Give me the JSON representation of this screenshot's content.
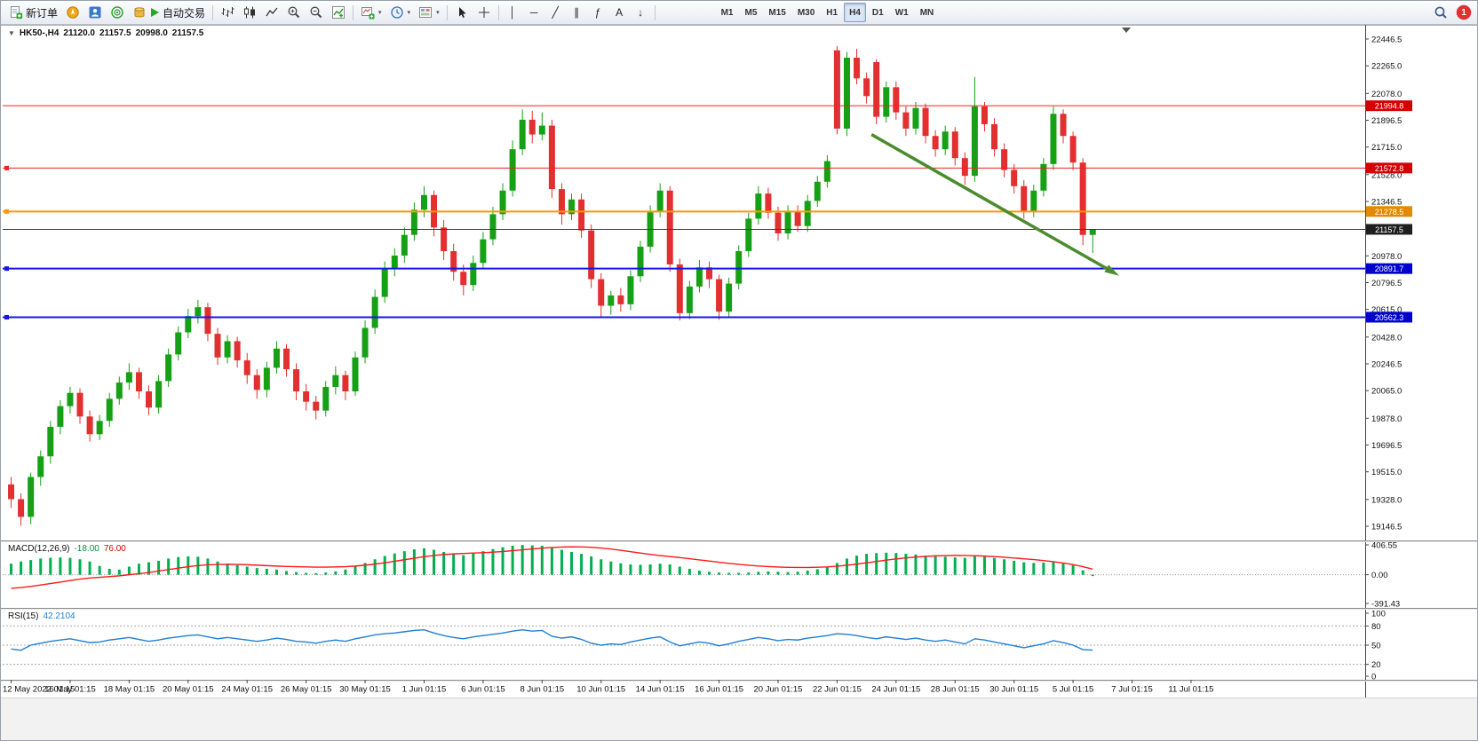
{
  "toolbar": {
    "new_order_label": "新订单",
    "auto_trading_label": "自动交易",
    "timeframes": [
      "M1",
      "M5",
      "M15",
      "M30",
      "H1",
      "H4",
      "D1",
      "W1",
      "MN"
    ],
    "active_timeframe": "H4",
    "notification_count": "1",
    "tools": [
      {
        "name": "vertical-line-tool",
        "glyph": "│"
      },
      {
        "name": "horizontal-line-tool",
        "glyph": "─"
      },
      {
        "name": "trendline-tool",
        "glyph": "╱"
      },
      {
        "name": "equidistant-channel-tool",
        "glyph": "∥"
      },
      {
        "name": "fibonacci-tool",
        "glyph": "ƒ"
      },
      {
        "name": "text-tool",
        "glyph": "A"
      },
      {
        "name": "arrows-tool",
        "glyph": "↓"
      }
    ]
  },
  "chart_data": {
    "type": "candlestick",
    "header": {
      "symbol_period": "HK50-,H4",
      "open": "21120.0",
      "high": "21157.5",
      "low": "20998.0",
      "close": "21157.5"
    },
    "candles_up_color": "#16a016",
    "candles_down_color": "#e22f2f",
    "y_axis": {
      "min": 19146.5,
      "max": 22446.5,
      "ticks": [
        22446.5,
        22265.0,
        22078.0,
        21896.5,
        21715.0,
        21528.0,
        21346.5,
        21165.0,
        20978.0,
        20796.5,
        20615.0,
        20428.0,
        20246.5,
        20065.0,
        19878.0,
        19696.5,
        19515.0,
        19328.0,
        19146.5
      ]
    },
    "hlines": [
      {
        "price": 21994.8,
        "label": "21994.8",
        "color": "#f02020",
        "box": "#d40000",
        "width": 1,
        "handles": false
      },
      {
        "price": 21572.8,
        "label": "21572.8",
        "color": "#f02020",
        "box": "#d40000",
        "width": 1,
        "handles": true
      },
      {
        "price": 21278.5,
        "label": "21278.5",
        "color": "#ff9800",
        "box": "#e28a00",
        "width": 2,
        "handles": true
      },
      {
        "price": 21157.5,
        "label": "21157.5",
        "color": "#3c3c3c",
        "box": "#1e1e1e",
        "width": 1,
        "handles": false
      },
      {
        "price": 20891.7,
        "label": "20891.7",
        "color": "#1515e6",
        "box": "#0000cd",
        "width": 2,
        "handles": true
      },
      {
        "price": 20562.3,
        "label": "20562.3",
        "color": "#1515e6",
        "box": "#0000cd",
        "width": 2,
        "handles": true
      }
    ],
    "arrow": {
      "from_index": 87.5,
      "from_price": 21800,
      "to_index": 112,
      "to_price": 20870,
      "color": "#4c8c2e"
    },
    "time_labels": [
      {
        "i": 0,
        "t": "12 May 2022 01:15"
      },
      {
        "i": 6,
        "t": "16 May 01:15"
      },
      {
        "i": 12,
        "t": "18 May 01:15"
      },
      {
        "i": 18,
        "t": "20 May 01:15"
      },
      {
        "i": 24,
        "t": "24 May 01:15"
      },
      {
        "i": 30,
        "t": "26 May 01:15"
      },
      {
        "i": 36,
        "t": "30 May 01:15"
      },
      {
        "i": 42,
        "t": "1 Jun 01:15"
      },
      {
        "i": 48,
        "t": "6 Jun 01:15"
      },
      {
        "i": 54,
        "t": "8 Jun 01:15"
      },
      {
        "i": 60,
        "t": "10 Jun 01:15"
      },
      {
        "i": 66,
        "t": "14 Jun 01:15"
      },
      {
        "i": 72,
        "t": "16 Jun 01:15"
      },
      {
        "i": 78,
        "t": "20 Jun 01:15"
      },
      {
        "i": 84,
        "t": "22 Jun 01:15"
      },
      {
        "i": 90,
        "t": "24 Jun 01:15"
      },
      {
        "i": 96,
        "t": "28 Jun 01:15"
      },
      {
        "i": 102,
        "t": "30 Jun 01:15"
      },
      {
        "i": 108,
        "t": "5 Jul 01:15"
      },
      {
        "i": 114,
        "t": "7 Jul 01:15"
      },
      {
        "i": 120,
        "t": "11 Jul 01:15"
      }
    ],
    "candles": [
      [
        19430,
        19480,
        19270,
        19330
      ],
      [
        19330,
        19370,
        19150,
        19210
      ],
      [
        19210,
        19510,
        19160,
        19480
      ],
      [
        19480,
        19660,
        19420,
        19620
      ],
      [
        19620,
        19860,
        19570,
        19820
      ],
      [
        19820,
        20000,
        19770,
        19960
      ],
      [
        19960,
        20090,
        19910,
        20050
      ],
      [
        20050,
        20080,
        19840,
        19890
      ],
      [
        19890,
        19930,
        19720,
        19770
      ],
      [
        19770,
        19900,
        19730,
        19860
      ],
      [
        19860,
        20050,
        19820,
        20010
      ],
      [
        20010,
        20160,
        19970,
        20120
      ],
      [
        20120,
        20250,
        20070,
        20190
      ],
      [
        20190,
        20220,
        20010,
        20060
      ],
      [
        20060,
        20100,
        19900,
        19950
      ],
      [
        19950,
        20170,
        19910,
        20130
      ],
      [
        20130,
        20350,
        20090,
        20310
      ],
      [
        20310,
        20500,
        20270,
        20460
      ],
      [
        20460,
        20620,
        20420,
        20570
      ],
      [
        20570,
        20680,
        20520,
        20630
      ],
      [
        20630,
        20660,
        20400,
        20450
      ],
      [
        20450,
        20490,
        20240,
        20290
      ],
      [
        20290,
        20440,
        20250,
        20400
      ],
      [
        20400,
        20430,
        20220,
        20270
      ],
      [
        20270,
        20320,
        20110,
        20170
      ],
      [
        20170,
        20210,
        20010,
        20070
      ],
      [
        20070,
        20260,
        20020,
        20220
      ],
      [
        20220,
        20400,
        20180,
        20350
      ],
      [
        20350,
        20380,
        20160,
        20210
      ],
      [
        20210,
        20250,
        20000,
        20060
      ],
      [
        20060,
        20110,
        19930,
        19990
      ],
      [
        19990,
        20030,
        19870,
        19930
      ],
      [
        19930,
        20130,
        19890,
        20090
      ],
      [
        20090,
        20230,
        20040,
        20170
      ],
      [
        20170,
        20200,
        20000,
        20060
      ],
      [
        20060,
        20330,
        20030,
        20290
      ],
      [
        20290,
        20540,
        20250,
        20490
      ],
      [
        20490,
        20750,
        20450,
        20700
      ],
      [
        20700,
        20940,
        20660,
        20890
      ],
      [
        20890,
        21030,
        20840,
        20980
      ],
      [
        20980,
        21170,
        20930,
        21120
      ],
      [
        21120,
        21340,
        21080,
        21290
      ],
      [
        21290,
        21450,
        21240,
        21390
      ],
      [
        21390,
        21420,
        21110,
        21170
      ],
      [
        21170,
        21220,
        20950,
        21010
      ],
      [
        21010,
        21060,
        20810,
        20870
      ],
      [
        20870,
        20920,
        20710,
        20780
      ],
      [
        20780,
        20980,
        20740,
        20930
      ],
      [
        20930,
        21140,
        20890,
        21090
      ],
      [
        21090,
        21310,
        21050,
        21260
      ],
      [
        21260,
        21470,
        21220,
        21420
      ],
      [
        21420,
        21760,
        21380,
        21700
      ],
      [
        21700,
        21970,
        21660,
        21900
      ],
      [
        21900,
        21960,
        21740,
        21800
      ],
      [
        21800,
        21950,
        21760,
        21860
      ],
      [
        21860,
        21900,
        21370,
        21430
      ],
      [
        21430,
        21470,
        21190,
        21260
      ],
      [
        21260,
        21400,
        21220,
        21360
      ],
      [
        21360,
        21400,
        21100,
        21150
      ],
      [
        21150,
        21190,
        20760,
        20820
      ],
      [
        20820,
        20860,
        20560,
        20640
      ],
      [
        20640,
        20740,
        20580,
        20710
      ],
      [
        20710,
        20760,
        20600,
        20650
      ],
      [
        20650,
        20880,
        20610,
        20840
      ],
      [
        20840,
        21080,
        20800,
        21040
      ],
      [
        21040,
        21320,
        21000,
        21280
      ],
      [
        21280,
        21470,
        21240,
        21420
      ],
      [
        21420,
        21450,
        20870,
        20920
      ],
      [
        20920,
        20960,
        20540,
        20590
      ],
      [
        20590,
        20810,
        20550,
        20770
      ],
      [
        20770,
        20950,
        20730,
        20900
      ],
      [
        20900,
        20940,
        20760,
        20820
      ],
      [
        20820,
        20850,
        20545,
        20600
      ],
      [
        20600,
        20830,
        20560,
        20790
      ],
      [
        20790,
        21050,
        20750,
        21010
      ],
      [
        21010,
        21270,
        20970,
        21230
      ],
      [
        21230,
        21450,
        21190,
        21400
      ],
      [
        21400,
        21440,
        21230,
        21270
      ],
      [
        21270,
        21310,
        21080,
        21130
      ],
      [
        21130,
        21320,
        21090,
        21280
      ],
      [
        21280,
        21320,
        21140,
        21180
      ],
      [
        21180,
        21390,
        21140,
        21350
      ],
      [
        21350,
        21520,
        21310,
        21480
      ],
      [
        21480,
        21660,
        21440,
        21620
      ],
      [
        22370,
        22400,
        21800,
        21840
      ],
      [
        21840,
        22360,
        21790,
        22320
      ],
      [
        22320,
        22380,
        22140,
        22180
      ],
      [
        22180,
        22220,
        22010,
        22060
      ],
      [
        22290,
        22310,
        21870,
        21920
      ],
      [
        21920,
        22160,
        21880,
        22120
      ],
      [
        22120,
        22160,
        21900,
        21950
      ],
      [
        21950,
        21990,
        21790,
        21840
      ],
      [
        21840,
        22020,
        21800,
        21980
      ],
      [
        21980,
        22010,
        21740,
        21790
      ],
      [
        21790,
        21830,
        21650,
        21700
      ],
      [
        21700,
        21860,
        21660,
        21820
      ],
      [
        21820,
        21850,
        21590,
        21640
      ],
      [
        21640,
        21680,
        21460,
        21520
      ],
      [
        21520,
        22190,
        21480,
        21990
      ],
      [
        21990,
        22020,
        21820,
        21870
      ],
      [
        21870,
        21910,
        21650,
        21700
      ],
      [
        21700,
        21740,
        21510,
        21560
      ],
      [
        21560,
        21600,
        21400,
        21450
      ],
      [
        21450,
        21490,
        21230,
        21280
      ],
      [
        21280,
        21460,
        21240,
        21420
      ],
      [
        21420,
        21640,
        21380,
        21600
      ],
      [
        21600,
        21990,
        21560,
        21940
      ],
      [
        21940,
        21970,
        21740,
        21790
      ],
      [
        21790,
        21820,
        21560,
        21610
      ],
      [
        21610,
        21640,
        21050,
        21120
      ],
      [
        21120,
        21157.5,
        20998,
        21157.5
      ]
    ],
    "macd": {
      "label": "MACD(12,26,9)",
      "main_value": "-18.00",
      "signal_value": "76.00",
      "axis": [
        "406.55",
        "0.00",
        "-391.43"
      ],
      "axis_max": 406.55,
      "axis_min": -391.43,
      "hist_color": "#00b050",
      "signal_color": "#ff1a1a",
      "histogram": [
        150,
        180,
        200,
        220,
        230,
        235,
        230,
        210,
        180,
        120,
        80,
        70,
        110,
        150,
        170,
        190,
        220,
        240,
        250,
        245,
        220,
        180,
        150,
        130,
        110,
        90,
        80,
        70,
        50,
        35,
        25,
        20,
        30,
        45,
        70,
        110,
        160,
        210,
        255,
        290,
        320,
        345,
        360,
        340,
        310,
        285,
        265,
        290,
        320,
        350,
        375,
        395,
        405,
        400,
        395,
        370,
        340,
        310,
        285,
        250,
        210,
        180,
        155,
        140,
        135,
        140,
        150,
        140,
        110,
        80,
        55,
        40,
        30,
        25,
        25,
        30,
        40,
        45,
        40,
        35,
        40,
        55,
        75,
        100,
        160,
        220,
        260,
        285,
        295,
        300,
        295,
        285,
        275,
        260,
        250,
        245,
        235,
        230,
        250,
        245,
        230,
        210,
        190,
        170,
        160,
        165,
        175,
        160,
        130,
        60,
        -18
      ],
      "signal": [
        -185,
        -175,
        -160,
        -140,
        -120,
        -100,
        -80,
        -60,
        -45,
        -35,
        -25,
        -15,
        0,
        15,
        30,
        50,
        70,
        90,
        110,
        125,
        135,
        140,
        142,
        140,
        136,
        130,
        124,
        118,
        113,
        109,
        106,
        104,
        104,
        106,
        110,
        118,
        130,
        145,
        163,
        183,
        204,
        225,
        245,
        262,
        275,
        284,
        290,
        295,
        300,
        307,
        316,
        327,
        339,
        351,
        362,
        371,
        377,
        380,
        379,
        374,
        364,
        350,
        333,
        314,
        295,
        277,
        261,
        247,
        233,
        218,
        202,
        186,
        170,
        155,
        141,
        129,
        119,
        111,
        105,
        101,
        99,
        99,
        102,
        107,
        116,
        129,
        145,
        163,
        181,
        199,
        215,
        229,
        241,
        250,
        257,
        261,
        263,
        262,
        259,
        254,
        247,
        238,
        228,
        217,
        206,
        193,
        178,
        160,
        138,
        110,
        76
      ]
    },
    "rsi": {
      "label": "RSI(15)",
      "value": "42.2104",
      "color": "#1f7fd4",
      "levels": [
        80,
        50,
        20
      ],
      "axis_labels": [
        "100",
        "80",
        "50",
        "20",
        "0"
      ],
      "values": [
        44,
        42,
        50,
        53,
        56,
        58,
        60,
        57,
        54,
        55,
        58,
        60,
        62,
        59,
        56,
        58,
        61,
        63,
        65,
        66,
        63,
        60,
        62,
        60,
        58,
        56,
        58,
        61,
        59,
        56,
        55,
        53,
        56,
        58,
        56,
        60,
        63,
        66,
        68,
        69,
        71,
        73,
        74,
        69,
        65,
        62,
        60,
        63,
        65,
        67,
        69,
        72,
        74,
        72,
        73,
        64,
        61,
        63,
        59,
        53,
        50,
        52,
        51,
        55,
        58,
        61,
        63,
        55,
        49,
        52,
        55,
        53,
        49,
        52,
        56,
        59,
        62,
        60,
        57,
        59,
        58,
        61,
        63,
        65,
        68,
        67,
        65,
        62,
        60,
        63,
        61,
        59,
        61,
        58,
        56,
        58,
        55,
        52,
        60,
        58,
        55,
        52,
        49,
        46,
        49,
        52,
        57,
        54,
        50,
        43,
        42.21
      ]
    }
  }
}
